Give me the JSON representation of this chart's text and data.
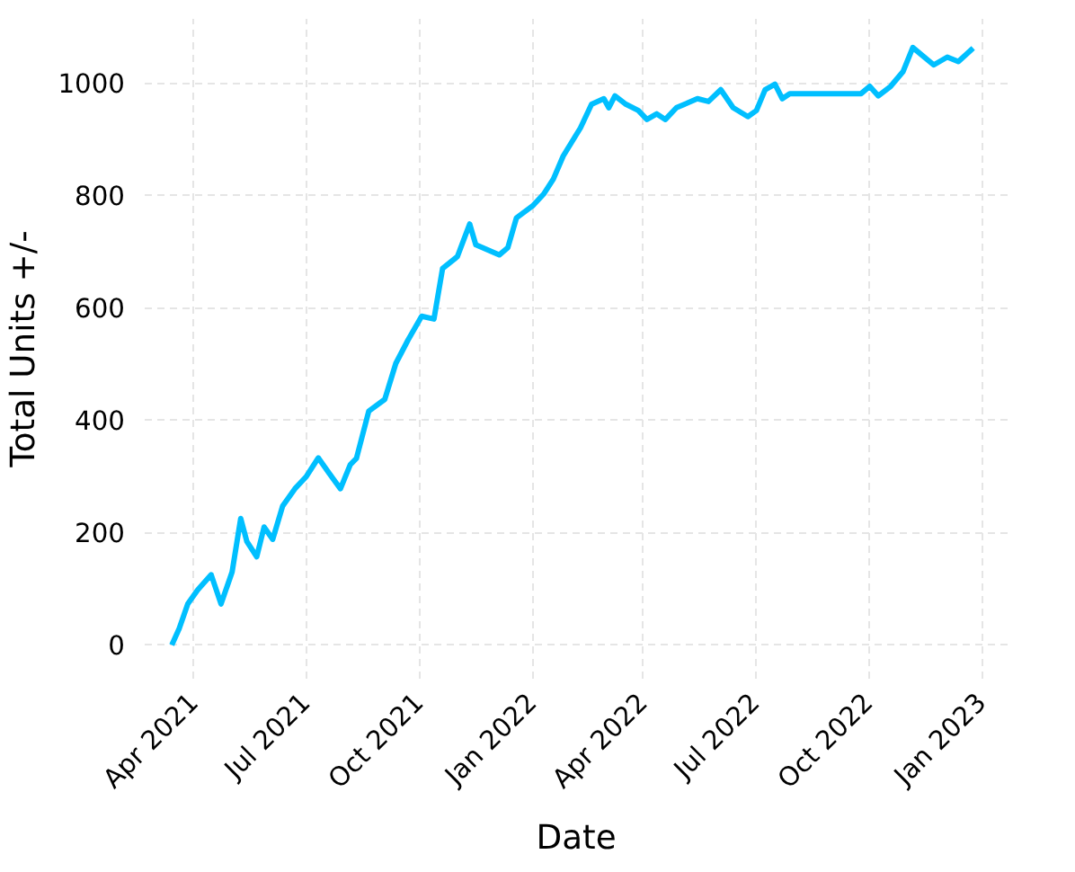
{
  "chart_data": {
    "type": "line",
    "xlabel": "Date",
    "ylabel": "Total Units +/-",
    "x": [
      "2021-03-14",
      "2021-03-20",
      "2021-03-27",
      "2021-04-04",
      "2021-04-15",
      "2021-04-23",
      "2021-05-02",
      "2021-05-09",
      "2021-05-14",
      "2021-05-22",
      "2021-05-28",
      "2021-06-04",
      "2021-06-12",
      "2021-06-22",
      "2021-07-01",
      "2021-07-11",
      "2021-07-20",
      "2021-07-29",
      "2021-08-06",
      "2021-08-11",
      "2021-08-21",
      "2021-09-03",
      "2021-09-12",
      "2021-09-22",
      "2021-10-03",
      "2021-10-13",
      "2021-10-20",
      "2021-11-01",
      "2021-11-11",
      "2021-11-16",
      "2021-12-05",
      "2021-12-12",
      "2021-12-19",
      "2022-01-01",
      "2022-01-10",
      "2022-01-18",
      "2022-01-26",
      "2022-02-09",
      "2022-02-18",
      "2022-02-28",
      "2022-03-04",
      "2022-03-09",
      "2022-03-18",
      "2022-03-28",
      "2022-04-04",
      "2022-04-12",
      "2022-04-19",
      "2022-04-28",
      "2022-05-15",
      "2022-05-24",
      "2022-06-03",
      "2022-06-13",
      "2022-06-25",
      "2022-07-02",
      "2022-07-09",
      "2022-07-17",
      "2022-07-23",
      "2022-07-29",
      "2022-09-25",
      "2022-10-02",
      "2022-10-09",
      "2022-10-19",
      "2022-10-29",
      "2022-11-06",
      "2022-11-23",
      "2022-12-04",
      "2022-12-13",
      "2022-12-25"
    ],
    "series": [
      {
        "color": "#00bfff",
        "values": [
          0,
          29,
          73,
          98,
          125,
          73,
          130,
          225,
          184,
          157,
          210,
          188,
          247,
          278,
          299,
          333,
          305,
          278,
          321,
          332,
          416,
          437,
          501,
          543,
          585,
          580,
          670,
          691,
          749,
          712,
          694,
          707,
          760,
          781,
          802,
          829,
          870,
          920,
          962,
          972,
          956,
          977,
          962,
          951,
          935,
          945,
          935,
          956,
          972,
          967,
          988,
          956,
          940,
          951,
          988,
          998,
          972,
          981,
          981,
          994,
          977,
          994,
          1020,
          1063,
          1032,
          1046,
          1038,
          1062
        ]
      }
    ],
    "xlim": [
      "2021-02-20",
      "2023-01-22"
    ],
    "ylim": [
      -60,
      1114
    ],
    "xticks": [
      {
        "value": "2021-04-01",
        "label": "Apr 2021"
      },
      {
        "value": "2021-07-01",
        "label": "Jul 2021"
      },
      {
        "value": "2021-10-01",
        "label": "Oct 2021"
      },
      {
        "value": "2022-01-01",
        "label": "Jan 2022"
      },
      {
        "value": "2022-04-01",
        "label": "Apr 2022"
      },
      {
        "value": "2022-07-01",
        "label": "Jul 2022"
      },
      {
        "value": "2022-10-01",
        "label": "Oct 2022"
      },
      {
        "value": "2023-01-01",
        "label": "Jan 2023"
      }
    ],
    "yticks": [
      0,
      200,
      400,
      600,
      800,
      1000
    ],
    "grid": true,
    "line_style": "solid"
  }
}
